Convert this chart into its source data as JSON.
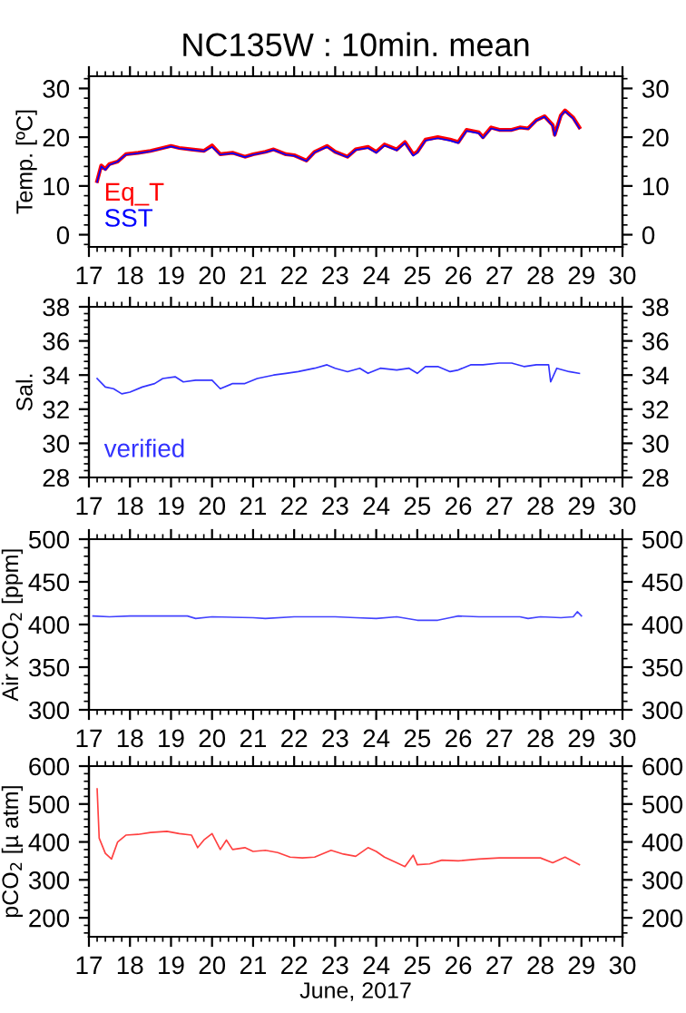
{
  "chart_data": [
    {
      "type": "line",
      "title": "NC135W : 10min. mean",
      "ylabel": "Temp. [ºC]",
      "legend": "bottom left",
      "xlim": [
        17,
        30
      ],
      "xticks": [
        17,
        18,
        19,
        20,
        21,
        22,
        23,
        24,
        25,
        26,
        27,
        28,
        29,
        30
      ],
      "ylim": [
        -2.5,
        32.5
      ],
      "yticks": [
        0,
        10,
        20,
        30
      ],
      "y2lim": [
        -2.5,
        32.5
      ],
      "y2ticks": [
        0,
        10,
        20,
        30
      ],
      "series": [
        {
          "name": "Eq_T",
          "color": "#ff0000",
          "x": [
            17.2,
            17.3,
            17.4,
            17.5,
            17.7,
            17.9,
            18.2,
            18.5,
            18.8,
            19.0,
            19.2,
            19.5,
            19.8,
            20.0,
            20.2,
            20.5,
            20.8,
            21.0,
            21.3,
            21.5,
            21.8,
            22.0,
            22.3,
            22.5,
            22.8,
            23.0,
            23.3,
            23.5,
            23.8,
            24.0,
            24.2,
            24.5,
            24.7,
            24.9,
            25.0,
            25.2,
            25.5,
            25.8,
            26.0,
            26.2,
            26.5,
            26.6,
            26.8,
            27.0,
            27.3,
            27.5,
            27.7,
            27.9,
            28.1,
            28.3,
            28.35,
            28.5,
            28.6,
            28.8,
            28.95
          ],
          "values": [
            11,
            14.2,
            13.5,
            14.5,
            15,
            16.5,
            16.8,
            17.2,
            17.8,
            18.2,
            17.8,
            17.5,
            17.2,
            18.3,
            16.5,
            16.8,
            16,
            16.5,
            17,
            17.5,
            16.5,
            16.3,
            15.2,
            17,
            18.2,
            17,
            16,
            17.5,
            18,
            17,
            18.5,
            17.5,
            19,
            16.5,
            17,
            19.5,
            20,
            19.5,
            19,
            21.5,
            21,
            20,
            22,
            21.5,
            21.5,
            22,
            21.8,
            23.5,
            24.3,
            22.5,
            20.5,
            24.5,
            25.5,
            24,
            22
          ]
        },
        {
          "name": "SST",
          "color": "#0000ff",
          "x": [
            17.2,
            17.3,
            17.4,
            17.5,
            17.7,
            17.9,
            18.2,
            18.5,
            18.8,
            19.0,
            19.2,
            19.5,
            19.8,
            20.0,
            20.2,
            20.5,
            20.8,
            21.0,
            21.3,
            21.5,
            21.8,
            22.0,
            22.3,
            22.5,
            22.8,
            23.0,
            23.3,
            23.5,
            23.8,
            24.0,
            24.2,
            24.5,
            24.7,
            24.9,
            25.0,
            25.2,
            25.5,
            25.8,
            26.0,
            26.2,
            26.5,
            26.6,
            26.8,
            27.0,
            27.3,
            27.5,
            27.7,
            27.9,
            28.1,
            28.3,
            28.35,
            28.5,
            28.6,
            28.8,
            28.95
          ],
          "values": [
            10.8,
            14,
            13.3,
            14.3,
            15,
            16.4,
            16.7,
            17.1,
            17.7,
            18.1,
            17.7,
            17.4,
            17.1,
            18,
            16.4,
            16.7,
            15.9,
            16.4,
            16.9,
            17.4,
            16.4,
            16.2,
            15.1,
            16.9,
            18,
            16.9,
            15.9,
            17.4,
            17.8,
            16.8,
            18.3,
            17.3,
            18.8,
            16.2,
            16.8,
            19.3,
            19.8,
            19.3,
            18.8,
            21.3,
            20.8,
            19.8,
            21.8,
            21.4,
            21.4,
            21.9,
            21.7,
            23.4,
            24.2,
            22.3,
            20.3,
            24.4,
            25.3,
            23.8,
            21.8
          ]
        }
      ]
    },
    {
      "type": "line",
      "ylabel": "Sal.",
      "legend": "bottom left",
      "xlim": [
        17,
        30
      ],
      "xticks": [
        17,
        18,
        19,
        20,
        21,
        22,
        23,
        24,
        25,
        26,
        27,
        28,
        29,
        30
      ],
      "ylim": [
        28,
        38
      ],
      "yticks": [
        28,
        30,
        32,
        34,
        36,
        38
      ],
      "y2lim": [
        28,
        38
      ],
      "y2ticks": [
        28,
        30,
        32,
        34,
        36,
        38
      ],
      "series": [
        {
          "name": "verified",
          "color": "#3333ff",
          "x": [
            17.2,
            17.4,
            17.6,
            17.8,
            18.0,
            18.3,
            18.6,
            18.8,
            19.1,
            19.3,
            19.6,
            20.0,
            20.2,
            20.5,
            20.8,
            21.1,
            21.5,
            21.8,
            22.1,
            22.5,
            22.8,
            23.0,
            23.3,
            23.6,
            23.8,
            24.1,
            24.5,
            24.8,
            25.0,
            25.2,
            25.5,
            25.8,
            26.0,
            26.3,
            26.6,
            27.0,
            27.3,
            27.6,
            27.9,
            28.2,
            28.25,
            28.4,
            28.7,
            28.95
          ],
          "values": [
            33.8,
            33.3,
            33.2,
            32.9,
            33.0,
            33.3,
            33.5,
            33.8,
            33.9,
            33.6,
            33.7,
            33.7,
            33.2,
            33.5,
            33.5,
            33.8,
            34.0,
            34.1,
            34.2,
            34.4,
            34.6,
            34.4,
            34.2,
            34.4,
            34.1,
            34.4,
            34.3,
            34.4,
            34.1,
            34.5,
            34.5,
            34.2,
            34.3,
            34.6,
            34.6,
            34.7,
            34.7,
            34.5,
            34.6,
            34.6,
            33.6,
            34.4,
            34.2,
            34.1
          ]
        }
      ]
    },
    {
      "type": "line",
      "ylabel": "Air xCO$_{2}$ [ppm]",
      "xlim": [
        17,
        30
      ],
      "xticks": [
        17,
        18,
        19,
        20,
        21,
        22,
        23,
        24,
        25,
        26,
        27,
        28,
        29,
        30
      ],
      "ylim": [
        300,
        500
      ],
      "yticks": [
        300,
        350,
        400,
        450,
        500
      ],
      "y2lim": [
        300,
        500
      ],
      "y2ticks": [
        300,
        350,
        400,
        450,
        500
      ],
      "series": [
        {
          "color": "#4444ff",
          "x": [
            17.1,
            17.5,
            18,
            18.5,
            19,
            19.4,
            19.6,
            20,
            21,
            21.3,
            22,
            23,
            23.5,
            24,
            24.5,
            25,
            25.5,
            25.8,
            26,
            26.5,
            27,
            27.5,
            27.7,
            28,
            28.5,
            28.8,
            28.9,
            29
          ],
          "values": [
            410,
            409,
            410,
            410,
            410,
            410,
            407,
            409,
            408,
            407,
            409,
            409,
            408,
            407,
            409,
            405,
            405,
            408,
            410,
            409,
            409,
            409,
            407,
            409,
            408,
            409,
            415,
            410
          ]
        }
      ]
    },
    {
      "type": "line",
      "ylabel": "pCO$_{2}$ [µ atm]",
      "xlabel": "June, 2017",
      "xlim": [
        17,
        30
      ],
      "xticks": [
        17,
        18,
        19,
        20,
        21,
        22,
        23,
        24,
        25,
        26,
        27,
        28,
        29,
        30
      ],
      "ylim": [
        150,
        600
      ],
      "yticks": [
        200,
        300,
        400,
        500,
        600
      ],
      "y2lim": [
        150,
        600
      ],
      "y2ticks": [
        200,
        300,
        400,
        500,
        600
      ],
      "series": [
        {
          "color": "#ff4040",
          "x": [
            17.2,
            17.25,
            17.4,
            17.55,
            17.7,
            17.9,
            18.2,
            18.5,
            18.9,
            19.2,
            19.5,
            19.65,
            19.8,
            20.0,
            20.2,
            20.35,
            20.5,
            20.8,
            21.0,
            21.3,
            21.6,
            21.9,
            22.2,
            22.5,
            22.9,
            23.2,
            23.5,
            23.8,
            24.0,
            24.2,
            24.5,
            24.7,
            24.9,
            25.0,
            25.3,
            25.6,
            26.0,
            26.5,
            27.0,
            27.5,
            28.0,
            28.3,
            28.6,
            28.95
          ],
          "values": [
            540,
            410,
            370,
            355,
            400,
            418,
            420,
            425,
            428,
            422,
            418,
            385,
            405,
            422,
            380,
            405,
            380,
            385,
            375,
            378,
            372,
            360,
            358,
            360,
            378,
            368,
            362,
            385,
            375,
            360,
            345,
            335,
            365,
            340,
            342,
            352,
            350,
            355,
            358,
            358,
            358,
            345,
            360,
            340
          ]
        }
      ]
    }
  ]
}
